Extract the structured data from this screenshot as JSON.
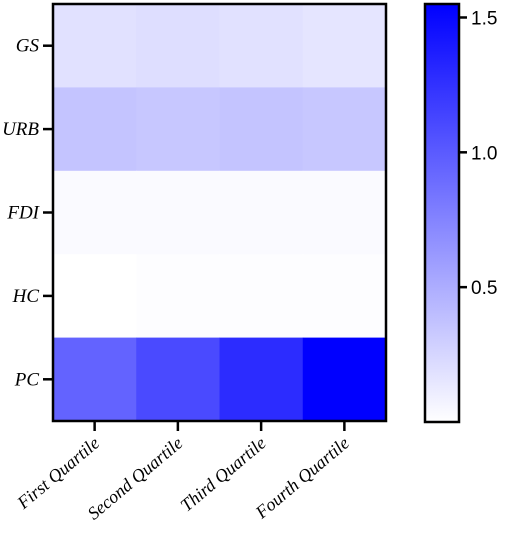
{
  "chart_data": {
    "type": "heatmap",
    "rows": [
      "GS",
      "URB",
      "FDI",
      "HC",
      "PC"
    ],
    "columns": [
      "First Quartile",
      "Second Quartile",
      "Third Quartile",
      "Fourth Quartile"
    ],
    "values": [
      [
        0.18,
        0.2,
        0.18,
        0.16
      ],
      [
        0.36,
        0.34,
        0.36,
        0.34
      ],
      [
        0.03,
        0.03,
        0.03,
        0.03
      ],
      [
        0.0,
        0.01,
        0.01,
        0.01
      ],
      [
        0.95,
        1.1,
        1.28,
        1.55
      ]
    ],
    "colorbar": {
      "min": 0.0,
      "max": 1.55,
      "ticks": [
        0.5,
        1.0,
        1.5
      ],
      "tick_labels": [
        "0.5",
        "1.0",
        "1.5"
      ],
      "color_low": "#ffffff",
      "color_high": "#0000ff"
    },
    "title": "",
    "xlabel": "",
    "ylabel": ""
  }
}
